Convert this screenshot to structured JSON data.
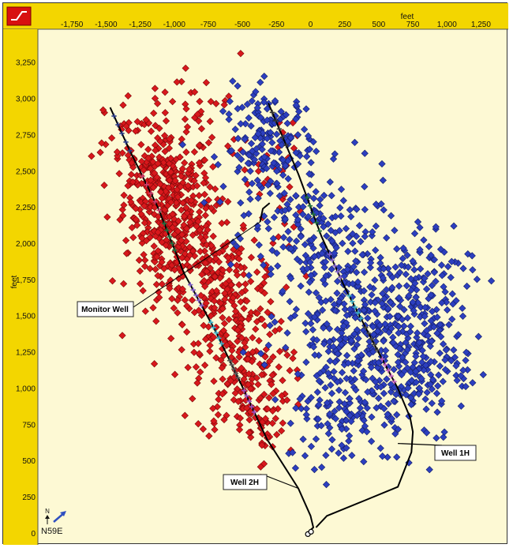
{
  "chart_data": {
    "type": "scatter",
    "title": "",
    "xlabel": "feet",
    "ylabel": "feet",
    "xlim": [
      -2000,
      1450
    ],
    "ylim": [
      -80,
      3480
    ],
    "x_ticks": [
      -1750,
      -1500,
      -1250,
      -1000,
      -750,
      -500,
      -250,
      0,
      250,
      500,
      750,
      1000,
      1250
    ],
    "y_ticks": [
      0,
      250,
      500,
      750,
      1000,
      1250,
      1500,
      1750,
      2000,
      2250,
      2500,
      2750,
      3000,
      3250
    ],
    "grid": false,
    "legend": "none",
    "colors": {
      "red": "#d8181c",
      "blue": "#2c3fbf",
      "track": "#000000",
      "background": "#fdf9d4",
      "axis_band": "#f3d600",
      "logo": "#d81010"
    },
    "series": [
      {
        "color": "red",
        "marker": "diamond",
        "clusters": [
          {
            "cx": -1050,
            "cy": 2350,
            "sx": 160,
            "sy": 220,
            "n": 260
          },
          {
            "cx": -950,
            "cy": 1950,
            "sx": 190,
            "sy": 230,
            "n": 220
          },
          {
            "cx": -600,
            "cy": 1600,
            "sx": 180,
            "sy": 220,
            "n": 190
          },
          {
            "cx": -500,
            "cy": 1050,
            "sx": 170,
            "sy": 200,
            "n": 150
          },
          {
            "cx": -1250,
            "cy": 2600,
            "sx": 130,
            "sy": 220,
            "n": 70
          },
          {
            "cx": -780,
            "cy": 2900,
            "sx": 160,
            "sy": 200,
            "n": 35
          },
          {
            "cx": -250,
            "cy": 2400,
            "sx": 120,
            "sy": 260,
            "n": 35
          },
          {
            "cx": -380,
            "cy": 720,
            "sx": 110,
            "sy": 140,
            "n": 35
          }
        ]
      },
      {
        "color": "blue",
        "marker": "diamond",
        "clusters": [
          {
            "cx": -300,
            "cy": 2650,
            "sx": 170,
            "sy": 210,
            "n": 190
          },
          {
            "cx": 100,
            "cy": 2000,
            "sx": 260,
            "sy": 240,
            "n": 170
          },
          {
            "cx": 300,
            "cy": 1500,
            "sx": 250,
            "sy": 220,
            "n": 230
          },
          {
            "cx": 650,
            "cy": 1150,
            "sx": 240,
            "sy": 260,
            "n": 190
          },
          {
            "cx": 250,
            "cy": 850,
            "sx": 220,
            "sy": 190,
            "n": 120
          },
          {
            "cx": 800,
            "cy": 1750,
            "sx": 200,
            "sy": 240,
            "n": 90
          },
          {
            "cx": 950,
            "cy": 1300,
            "sx": 150,
            "sy": 190,
            "n": 60
          }
        ]
      }
    ],
    "wells": [
      {
        "name": "Well 2H",
        "path": [
          [
            -1470,
            2940
          ],
          [
            -1330,
            2650
          ],
          [
            -1120,
            2250
          ],
          [
            -930,
            1800
          ],
          [
            -700,
            1400
          ],
          [
            -520,
            1050
          ],
          [
            -320,
            650
          ],
          [
            -90,
            310
          ],
          [
            0,
            120
          ],
          [
            20,
            40
          ],
          [
            -20,
            5
          ]
        ]
      },
      {
        "name": "Well 1H",
        "path": [
          [
            -310,
            2970
          ],
          [
            -90,
            2480
          ],
          [
            80,
            2050
          ],
          [
            250,
            1700
          ],
          [
            470,
            1300
          ],
          [
            640,
            1000
          ],
          [
            730,
            800
          ],
          [
            750,
            700
          ],
          [
            740,
            560
          ],
          [
            640,
            320
          ],
          [
            380,
            220
          ],
          [
            120,
            120
          ],
          [
            40,
            40
          ]
        ]
      },
      {
        "name": "Monitor Well",
        "path": [
          [
            -370,
            2150
          ],
          [
            -350,
            2240
          ],
          [
            -300,
            2280
          ]
        ]
      }
    ],
    "stage_markers": [
      {
        "well": "Well 2H",
        "color": "#2a3d8c",
        "from": 0.02,
        "to": 0.1
      },
      {
        "well": "Well 2H",
        "color": "#d04070",
        "from": 0.16,
        "to": 0.24
      },
      {
        "well": "Well 2H",
        "color": "#1f6e40",
        "from": 0.27,
        "to": 0.33
      },
      {
        "well": "Well 2H",
        "color": "#8060c8",
        "from": 0.41,
        "to": 0.46
      },
      {
        "well": "Well 2H",
        "color": "#3fb0c8",
        "from": 0.5,
        "to": 0.55
      },
      {
        "well": "Well 2H",
        "color": "#555555",
        "from": 0.59,
        "to": 0.63
      },
      {
        "well": "Well 2H",
        "color": "#a050c0",
        "from": 0.66,
        "to": 0.71
      },
      {
        "well": "Well 1H",
        "color": "#333333",
        "from": 0.02,
        "to": 0.09
      },
      {
        "well": "Well 1H",
        "color": "#1f6e40",
        "from": 0.2,
        "to": 0.27
      },
      {
        "well": "Well 1H",
        "color": "#8060c8",
        "from": 0.32,
        "to": 0.37
      },
      {
        "well": "Well 1H",
        "color": "#3fb0c8",
        "from": 0.41,
        "to": 0.46
      },
      {
        "well": "Well 1H",
        "color": "#444444",
        "from": 0.48,
        "to": 0.53
      },
      {
        "well": "Well 1H",
        "color": "#c060c0",
        "from": 0.55,
        "to": 0.6
      }
    ],
    "annotations": [
      {
        "label": "Monitor Well",
        "target": [
          -370,
          2150
        ]
      },
      {
        "label": "Well 2H",
        "target": [
          -90,
          310
        ]
      },
      {
        "label": "Well 1H",
        "target": [
          640,
          620
        ]
      }
    ],
    "north_arrow": {
      "letter": "N",
      "label": "N59E"
    }
  }
}
